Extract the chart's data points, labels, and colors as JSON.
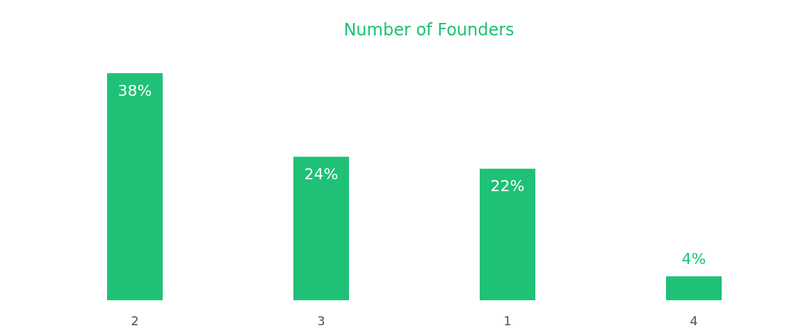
{
  "chart_data": {
    "type": "bar",
    "title": "Number of Founders",
    "categories": [
      "2",
      "3",
      "1",
      "4"
    ],
    "values": [
      38,
      24,
      22,
      4
    ],
    "color": "#1fc177",
    "value_labels": [
      "38%",
      "24%",
      "22%",
      "4%"
    ]
  }
}
